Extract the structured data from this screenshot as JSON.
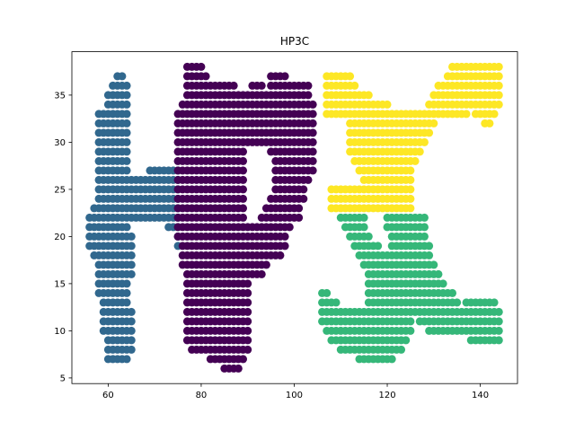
{
  "chart_data": {
    "type": "scatter",
    "title": "HP3C",
    "xlabel": "",
    "ylabel": "",
    "xlim": [
      52.2,
      148.0
    ],
    "ylim": [
      4.4,
      39.6
    ],
    "xticks": [
      60,
      80,
      100,
      120,
      140
    ],
    "yticks": [
      5,
      10,
      15,
      20,
      25,
      30,
      35
    ],
    "grid": false,
    "legend": "none",
    "series": [
      {
        "color": "#31688e",
        "rows": [
          [
            37,
            [
              [
                62,
                63
              ]
            ]
          ],
          [
            36,
            [
              [
                61,
                64
              ]
            ]
          ],
          [
            35,
            [
              [
                60,
                64
              ]
            ]
          ],
          [
            34,
            [
              [
                60,
                64
              ]
            ]
          ],
          [
            33,
            [
              [
                58,
                64
              ]
            ]
          ],
          [
            32,
            [
              [
                58,
                64
              ]
            ]
          ],
          [
            31,
            [
              [
                58,
                64
              ]
            ]
          ],
          [
            30,
            [
              [
                58,
                64
              ]
            ]
          ],
          [
            29,
            [
              [
                58,
                64
              ]
            ]
          ],
          [
            28,
            [
              [
                58,
                64
              ]
            ]
          ],
          [
            27,
            [
              [
                58,
                64
              ],
              [
                69,
                75
              ]
            ]
          ],
          [
            26,
            [
              [
                58,
                75
              ]
            ]
          ],
          [
            25,
            [
              [
                58,
                75
              ]
            ]
          ],
          [
            24,
            [
              [
                58,
                75
              ]
            ]
          ],
          [
            23,
            [
              [
                57,
                75
              ]
            ]
          ],
          [
            22,
            [
              [
                56,
                75
              ]
            ]
          ],
          [
            21,
            [
              [
                56,
                64
              ],
              [
                73,
                75
              ]
            ]
          ],
          [
            20,
            [
              [
                56,
                65
              ],
              [
                75,
                75
              ]
            ]
          ],
          [
            19,
            [
              [
                56,
                65
              ],
              [
                75,
                75
              ]
            ]
          ],
          [
            18,
            [
              [
                57,
                65
              ]
            ]
          ],
          [
            17,
            [
              [
                58,
                65
              ]
            ]
          ],
          [
            16,
            [
              [
                58,
                65
              ]
            ]
          ],
          [
            15,
            [
              [
                58,
                64
              ]
            ]
          ],
          [
            14,
            [
              [
                58,
                64
              ]
            ]
          ],
          [
            13,
            [
              [
                59,
                64
              ]
            ]
          ],
          [
            12,
            [
              [
                59,
                65
              ]
            ]
          ],
          [
            11,
            [
              [
                59,
                65
              ]
            ]
          ],
          [
            10,
            [
              [
                59,
                65
              ]
            ]
          ],
          [
            9,
            [
              [
                60,
                65
              ]
            ]
          ],
          [
            8,
            [
              [
                60,
                65
              ]
            ]
          ],
          [
            7,
            [
              [
                60,
                64
              ]
            ]
          ]
        ]
      },
      {
        "color": "#440154",
        "rows": [
          [
            38,
            [
              [
                77,
                80
              ]
            ]
          ],
          [
            37,
            [
              [
                77,
                81
              ],
              [
                95,
                98
              ]
            ]
          ],
          [
            36,
            [
              [
                77,
                87
              ],
              [
                91,
                93
              ],
              [
                95,
                103
              ]
            ]
          ],
          [
            35,
            [
              [
                77,
                103
              ]
            ]
          ],
          [
            34,
            [
              [
                76,
                104
              ]
            ]
          ],
          [
            33,
            [
              [
                75,
                104
              ]
            ]
          ],
          [
            32,
            [
              [
                75,
                104
              ]
            ]
          ],
          [
            31,
            [
              [
                75,
                104
              ]
            ]
          ],
          [
            30,
            [
              [
                75,
                104
              ]
            ]
          ],
          [
            29,
            [
              [
                75,
                89
              ],
              [
                95,
                104
              ]
            ]
          ],
          [
            28,
            [
              [
                75,
                89
              ],
              [
                96,
                104
              ]
            ]
          ],
          [
            27,
            [
              [
                75,
                89
              ],
              [
                96,
                104
              ]
            ]
          ],
          [
            26,
            [
              [
                75,
                89
              ],
              [
                96,
                103
              ]
            ]
          ],
          [
            25,
            [
              [
                75,
                89
              ],
              [
                96,
                102
              ]
            ]
          ],
          [
            24,
            [
              [
                75,
                89
              ],
              [
                95,
                102
              ]
            ]
          ],
          [
            23,
            [
              [
                75,
                89
              ],
              [
                94,
                101
              ]
            ]
          ],
          [
            22,
            [
              [
                75,
                89
              ],
              [
                93,
                101
              ]
            ]
          ],
          [
            21,
            [
              [
                75,
                99
              ]
            ]
          ],
          [
            20,
            [
              [
                75,
                98
              ]
            ]
          ],
          [
            19,
            [
              [
                76,
                98
              ]
            ]
          ],
          [
            18,
            [
              [
                76,
                97
              ]
            ]
          ],
          [
            17,
            [
              [
                76,
                94
              ]
            ]
          ],
          [
            16,
            [
              [
                77,
                93
              ]
            ]
          ],
          [
            15,
            [
              [
                77,
                90
              ]
            ]
          ],
          [
            14,
            [
              [
                77,
                90
              ]
            ]
          ],
          [
            13,
            [
              [
                77,
                90
              ]
            ]
          ],
          [
            12,
            [
              [
                77,
                90
              ]
            ]
          ],
          [
            11,
            [
              [
                77,
                90
              ]
            ]
          ],
          [
            10,
            [
              [
                77,
                90
              ]
            ]
          ],
          [
            9,
            [
              [
                77,
                90
              ]
            ]
          ],
          [
            8,
            [
              [
                78,
                90
              ]
            ]
          ],
          [
            7,
            [
              [
                82,
                89
              ]
            ]
          ],
          [
            6,
            [
              [
                85,
                88
              ]
            ]
          ]
        ]
      },
      {
        "color": "#35b779",
        "rows": [
          [
            22,
            [
              [
                110,
                115
              ],
              [
                120,
                128
              ]
            ]
          ],
          [
            21,
            [
              [
                111,
                115
              ],
              [
                120,
                128
              ]
            ]
          ],
          [
            20,
            [
              [
                112,
                116
              ],
              [
                121,
                128
              ]
            ]
          ],
          [
            19,
            [
              [
                113,
                118
              ],
              [
                121,
                129
              ]
            ]
          ],
          [
            18,
            [
              [
                114,
                129
              ]
            ]
          ],
          [
            17,
            [
              [
                115,
                130
              ]
            ]
          ],
          [
            16,
            [
              [
                116,
                131
              ]
            ]
          ],
          [
            15,
            [
              [
                116,
                132
              ]
            ]
          ],
          [
            14,
            [
              [
                116,
                134
              ],
              [
                106,
                107
              ]
            ]
          ],
          [
            13,
            [
              [
                106,
                109
              ],
              [
                116,
                135
              ],
              [
                137,
                143
              ]
            ]
          ],
          [
            12,
            [
              [
                106,
                144
              ]
            ]
          ],
          [
            11,
            [
              [
                106,
                125
              ],
              [
                127,
                144
              ]
            ]
          ],
          [
            10,
            [
              [
                107,
                125
              ],
              [
                129,
                144
              ]
            ]
          ],
          [
            9,
            [
              [
                108,
                124
              ],
              [
                138,
                144
              ]
            ]
          ],
          [
            8,
            [
              [
                110,
                123
              ]
            ]
          ],
          [
            7,
            [
              [
                114,
                121
              ]
            ]
          ]
        ]
      },
      {
        "color": "#fde725",
        "rows": [
          [
            38,
            [
              [
                134,
                140
              ],
              [
                141,
                144
              ]
            ]
          ],
          [
            37,
            [
              [
                107,
                112
              ],
              [
                133,
                144
              ]
            ]
          ],
          [
            36,
            [
              [
                107,
                113
              ],
              [
                131,
                144
              ]
            ]
          ],
          [
            35,
            [
              [
                107,
                116
              ],
              [
                130,
                144
              ]
            ]
          ],
          [
            34,
            [
              [
                107,
                120
              ],
              [
                129,
                144
              ]
            ]
          ],
          [
            33,
            [
              [
                107,
                137
              ],
              [
                139,
                143
              ]
            ]
          ],
          [
            32,
            [
              [
                112,
                130
              ],
              [
                141,
                142
              ]
            ]
          ],
          [
            31,
            [
              [
                112,
                129
              ]
            ]
          ],
          [
            30,
            [
              [
                112,
                128
              ]
            ]
          ],
          [
            29,
            [
              [
                112,
                127
              ]
            ]
          ],
          [
            28,
            [
              [
                113,
                126
              ]
            ]
          ],
          [
            27,
            [
              [
                114,
                125
              ]
            ]
          ],
          [
            26,
            [
              [
                115,
                125
              ]
            ]
          ],
          [
            25,
            [
              [
                108,
                125
              ]
            ]
          ],
          [
            24,
            [
              [
                108,
                125
              ]
            ]
          ],
          [
            23,
            [
              [
                108,
                125
              ]
            ]
          ]
        ]
      }
    ]
  }
}
